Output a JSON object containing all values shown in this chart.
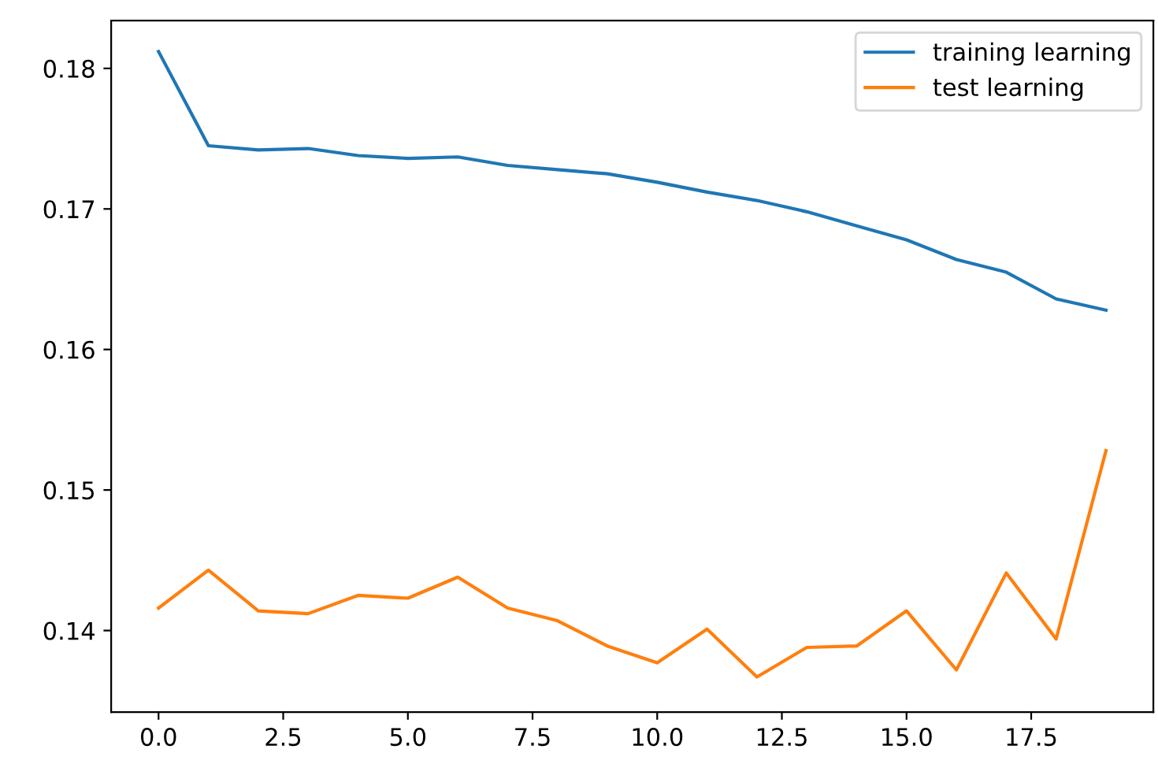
{
  "chart_data": {
    "type": "line",
    "x": [
      0,
      1,
      2,
      3,
      4,
      5,
      6,
      7,
      8,
      9,
      10,
      11,
      12,
      13,
      14,
      15,
      16,
      17,
      18,
      19
    ],
    "series": [
      {
        "name": "training learning",
        "color": "#1f77b4",
        "values": [
          0.1812,
          0.1745,
          0.1742,
          0.1743,
          0.1738,
          0.1736,
          0.1737,
          0.1731,
          0.1728,
          0.1725,
          0.1719,
          0.1712,
          0.1706,
          0.1698,
          0.1688,
          0.1678,
          0.1664,
          0.1655,
          0.1636,
          0.1628
        ]
      },
      {
        "name": "test learning",
        "color": "#ff7f0e",
        "values": [
          0.1416,
          0.1443,
          0.1414,
          0.1412,
          0.1425,
          0.1423,
          0.1438,
          0.1416,
          0.1407,
          0.1389,
          0.1377,
          0.1401,
          0.1367,
          0.1388,
          0.1389,
          0.1414,
          0.1372,
          0.1441,
          0.1394,
          0.1528
        ]
      }
    ],
    "xlim": [
      -0.95,
      19.95
    ],
    "ylim": [
      0.1342,
      0.1834
    ],
    "xticks": [
      {
        "value": 0,
        "label": "0.0"
      },
      {
        "value": 2.5,
        "label": "2.5"
      },
      {
        "value": 5,
        "label": "5.0"
      },
      {
        "value": 7.5,
        "label": "7.5"
      },
      {
        "value": 10,
        "label": "10.0"
      },
      {
        "value": 12.5,
        "label": "12.5"
      },
      {
        "value": 15,
        "label": "15.0"
      },
      {
        "value": 17.5,
        "label": "17.5"
      }
    ],
    "yticks": [
      {
        "value": 0.14,
        "label": "0.14"
      },
      {
        "value": 0.15,
        "label": "0.15"
      },
      {
        "value": 0.16,
        "label": "0.16"
      },
      {
        "value": 0.17,
        "label": "0.17"
      },
      {
        "value": 0.18,
        "label": "0.18"
      }
    ],
    "legend": "top right",
    "grid": false,
    "line_style": "solid"
  }
}
